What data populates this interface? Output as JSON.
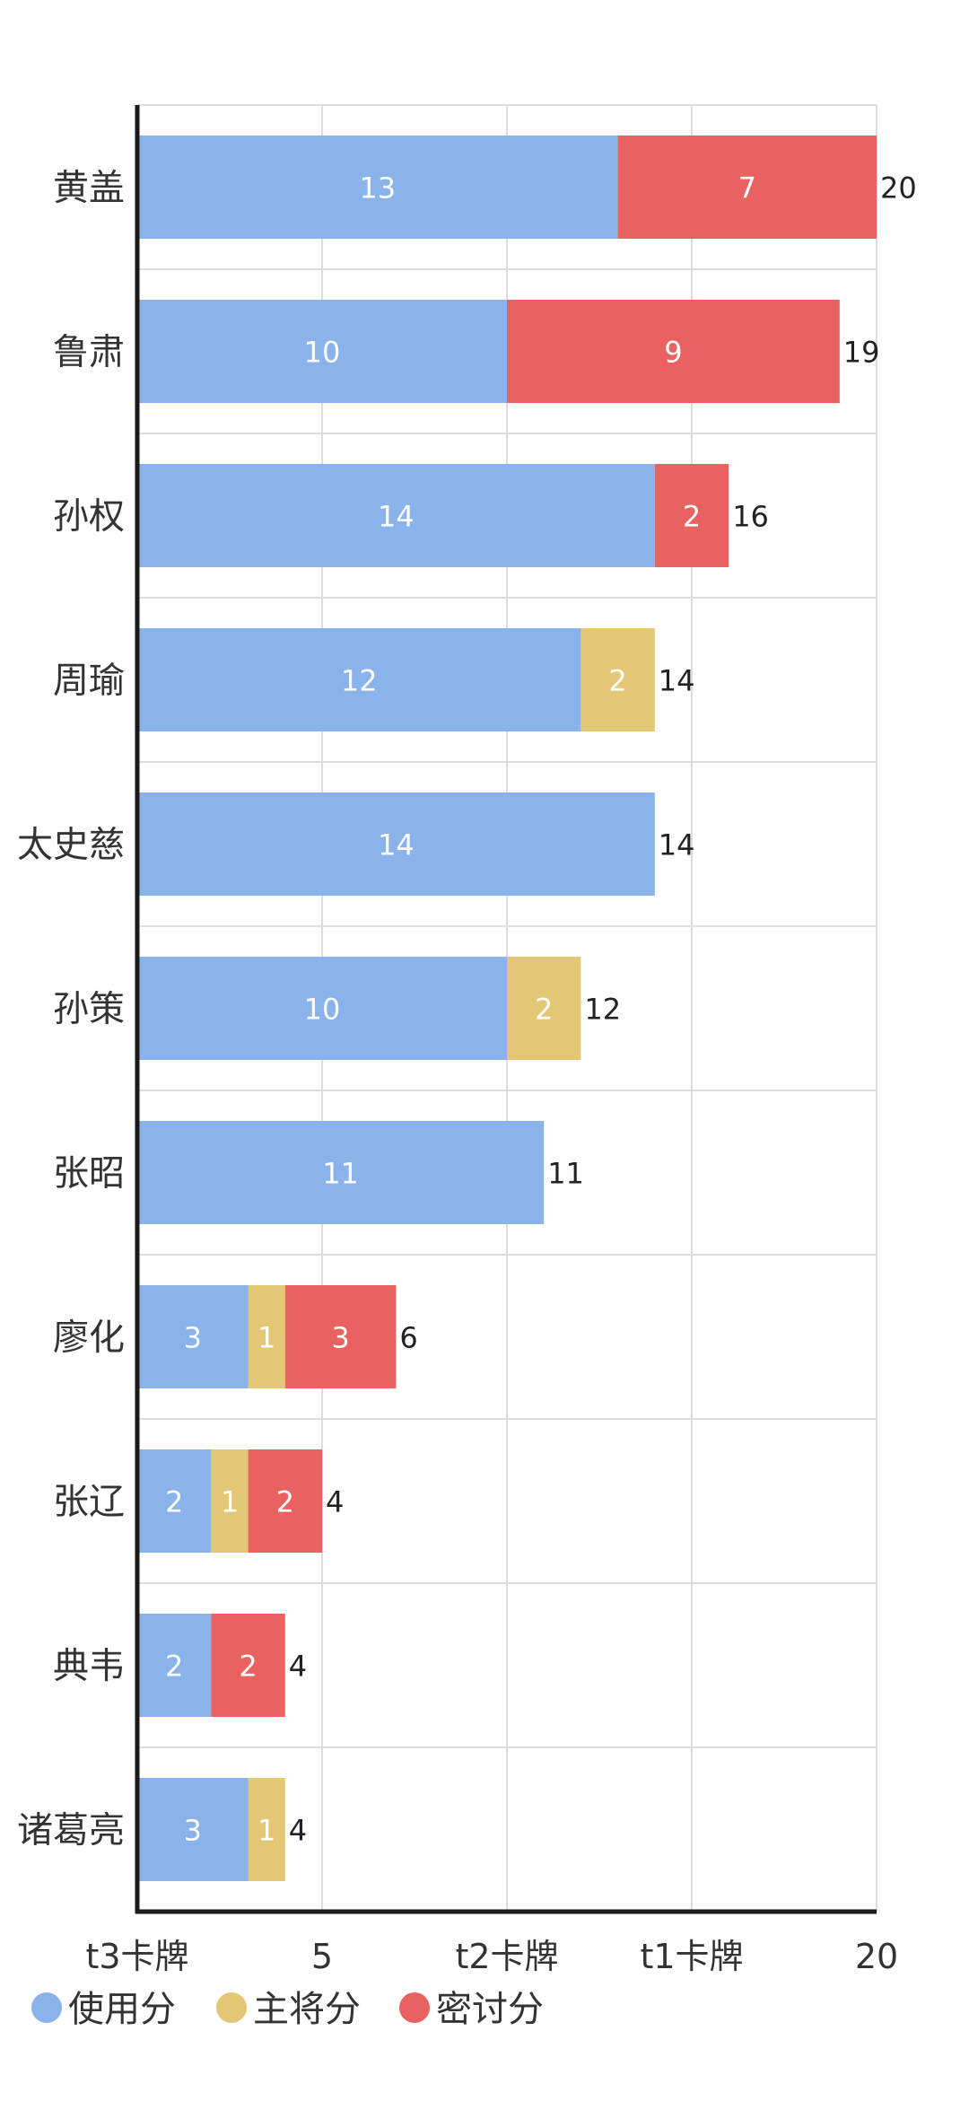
{
  "chart_data": {
    "type": "bar",
    "orientation": "horizontal",
    "stacked": true,
    "categories": [
      "黄盖",
      "鲁肃",
      "孙权",
      "周瑜",
      "太史慈",
      "孙策",
      "张昭",
      "廖化",
      "张辽",
      "典韦",
      "诸葛亮"
    ],
    "series": [
      {
        "name": "使用分",
        "color": "#89b3ea",
        "values": [
          13,
          10,
          14,
          12,
          14,
          10,
          11,
          3,
          2,
          2,
          3
        ]
      },
      {
        "name": "主将分",
        "color": "#e3c774",
        "values": [
          0,
          0,
          0,
          2,
          0,
          2,
          0,
          1,
          1,
          0,
          1
        ]
      },
      {
        "name": "密讨分",
        "color": "#e9625f",
        "values": [
          7,
          9,
          2,
          0,
          0,
          0,
          0,
          3,
          2,
          2,
          0
        ]
      }
    ],
    "totals": [
      20,
      19,
      16,
      14,
      14,
      12,
      11,
      6,
      4,
      4,
      4
    ],
    "x_ticks": [
      {
        "value": 0,
        "label": "t3卡牌"
      },
      {
        "value": 5,
        "label": "5"
      },
      {
        "value": 10,
        "label": "t2卡牌"
      },
      {
        "value": 15,
        "label": "t1卡牌"
      },
      {
        "value": 20,
        "label": "20"
      }
    ],
    "xlim": [
      0,
      20
    ],
    "grid": true,
    "legend_position": "bottom-left",
    "colors": {
      "axis": "#1a1a1a",
      "grid": "#dddddd",
      "label_inside": "#ffffff",
      "label_outside": "#222222",
      "category_label": "#333333"
    }
  }
}
